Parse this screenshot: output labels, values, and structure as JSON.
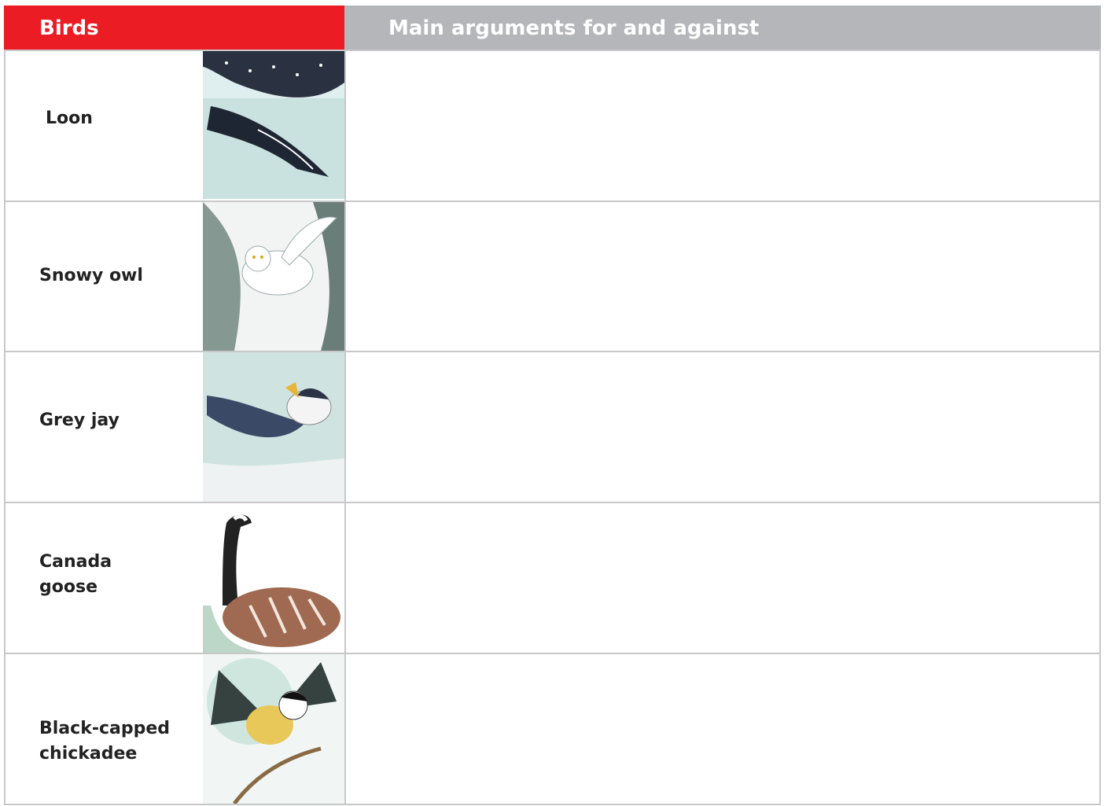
{
  "table": {
    "header": [
      "Birds",
      "Main arguments for and against"
    ],
    "rows": [
      [
        "Loon"
      ],
      [
        "Snowy owl"
      ],
      [
        "Grey jay"
      ],
      [
        "Canada goose"
      ],
      [
        "Black-capped chickadee"
      ]
    ]
  }
}
